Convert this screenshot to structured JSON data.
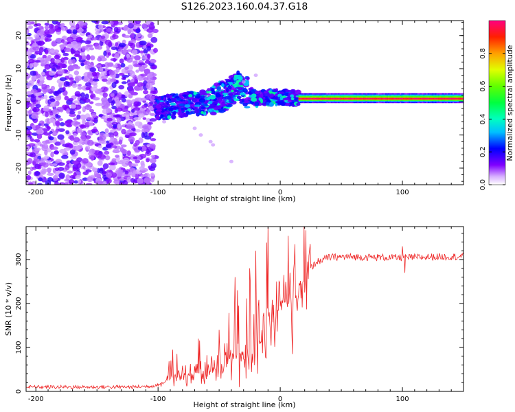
{
  "chart_data": [
    {
      "type": "heatmap",
      "title": "S126.2023.160.04.37.G18",
      "xlabel": "Height of straight line (km)",
      "ylabel": "Frequency (Hz)",
      "xlim": [
        -208,
        150
      ],
      "ylim": [
        -25,
        24.5
      ],
      "xticks": [
        -200,
        -100,
        0,
        100
      ],
      "yticks": [
        -20,
        -10,
        0,
        10,
        20
      ],
      "colorbar": {
        "label": "Normalized spectral amplitude",
        "range": [
          0,
          1
        ],
        "ticks": [
          0.0,
          0.2,
          0.4,
          0.6,
          0.8
        ]
      },
      "regions": [
        {
          "name": "noise",
          "x": [
            -208,
            -102
          ],
          "f": [
            -25,
            24.5
          ],
          "amplitude": [
            0.0,
            0.25
          ]
        },
        {
          "name": "transition",
          "x": [
            -102,
            15
          ],
          "f_center_km": [
            -100,
            -80,
            -60,
            -45,
            -35,
            -20,
            0,
            15
          ],
          "f_center_hz": [
            -2,
            -1,
            0,
            2,
            5,
            1,
            1.5,
            1
          ],
          "amplitude": [
            0.1,
            0.5
          ]
        },
        {
          "name": "steady-tone",
          "x": [
            15,
            150
          ],
          "f": [
            0,
            2
          ],
          "amplitude": [
            0.8,
            1.0
          ]
        }
      ]
    },
    {
      "type": "line",
      "xlabel": "Height of straight line (km)",
      "ylabel": "SNR (10 * v/v)",
      "xlim": [
        -208,
        150
      ],
      "ylim": [
        0,
        375
      ],
      "xticks": [
        -200,
        -100,
        0,
        100
      ],
      "yticks": [
        0,
        100,
        200,
        300
      ],
      "series": [
        {
          "name": "SNR",
          "color": "#ee2222",
          "x": [
            -208,
            -180,
            -150,
            -120,
            -105,
            -95,
            -90,
            -80,
            -70,
            -60,
            -50,
            -40,
            -30,
            -20,
            -15,
            -10,
            -5,
            0,
            5,
            10,
            15,
            20,
            25,
            30,
            40,
            50,
            60,
            80,
            100,
            120,
            150
          ],
          "y": [
            10,
            10,
            10,
            10,
            12,
            20,
            30,
            35,
            40,
            45,
            55,
            70,
            80,
            90,
            120,
            140,
            160,
            190,
            200,
            210,
            230,
            260,
            280,
            295,
            305,
            306,
            306,
            305,
            304,
            306,
            307
          ],
          "spikes": [
            [
              -88,
              95
            ],
            [
              -67,
              120
            ],
            [
              -50,
              140
            ],
            [
              -37,
              260
            ],
            [
              -35,
              230
            ],
            [
              -25,
              280
            ],
            [
              -20,
              320
            ],
            [
              -10,
              375
            ],
            [
              -3,
              250
            ],
            [
              3,
              265
            ],
            [
              8,
              270
            ],
            [
              12,
              335
            ],
            [
              10,
              85
            ],
            [
              100,
              330
            ],
            [
              102,
              270
            ]
          ]
        }
      ]
    }
  ]
}
